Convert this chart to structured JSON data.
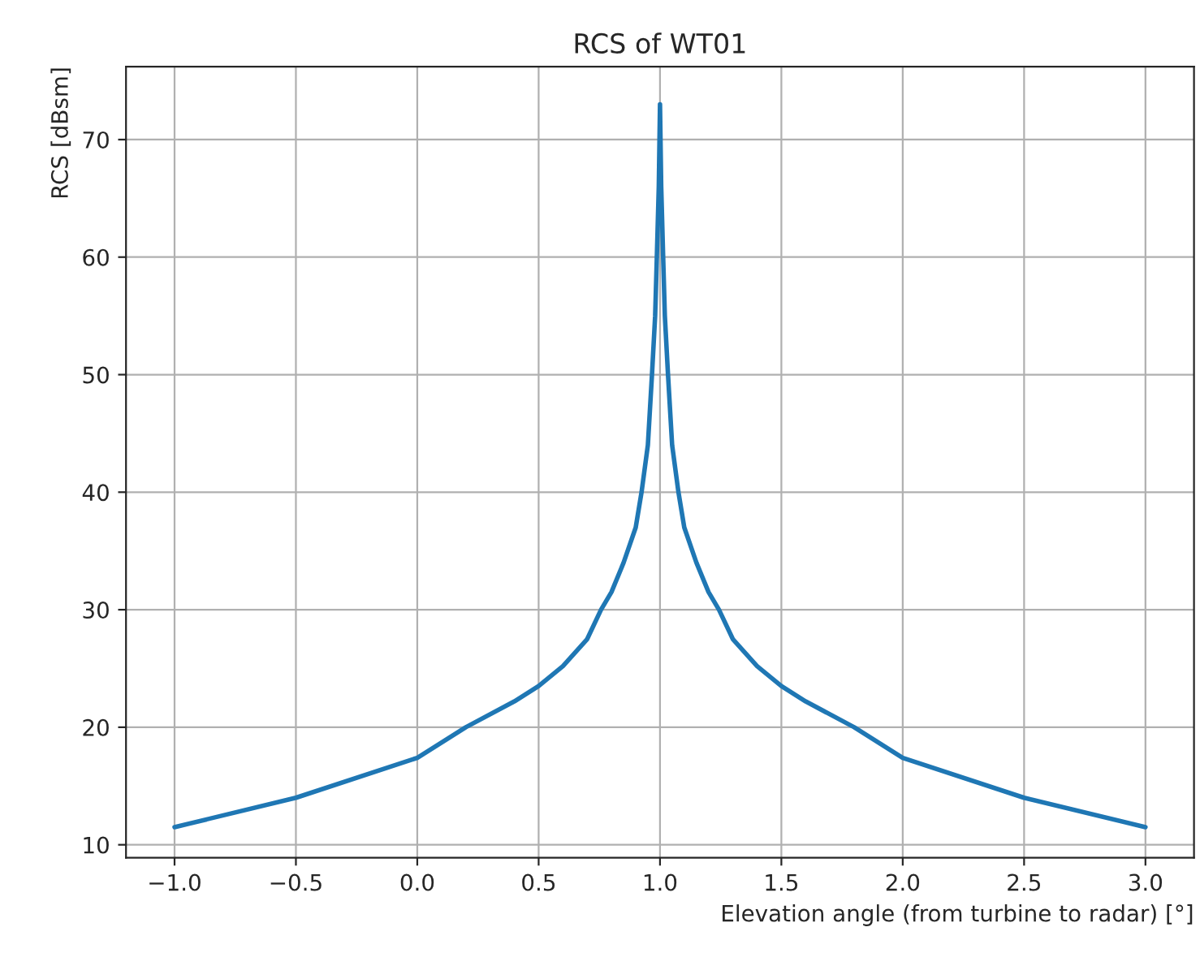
{
  "chart_data": {
    "type": "line",
    "title": "RCS of WT01",
    "xlabel": "Elevation angle (from turbine to radar) [°]",
    "ylabel": "RCS [dBsm]",
    "series": [
      {
        "color": "#1f77b4",
        "x": [
          -1.0,
          -0.5,
          0.0,
          0.2,
          0.4,
          0.5,
          0.6,
          0.7,
          0.757,
          0.8,
          0.85,
          0.9,
          0.924,
          0.95,
          0.967,
          0.98,
          0.987,
          0.995,
          1.0,
          1.005,
          1.013,
          1.02,
          1.033,
          1.05,
          1.076,
          1.1,
          1.15,
          1.2,
          1.243,
          1.3,
          1.4,
          1.5,
          1.6,
          1.8,
          2.0,
          2.5,
          3.0
        ],
        "values": [
          11.5,
          14.0,
          17.4,
          20.0,
          22.2,
          23.5,
          25.2,
          27.5,
          30,
          31.5,
          34,
          37,
          40,
          44,
          50,
          55,
          60,
          66,
          73,
          66,
          60,
          55,
          50,
          44,
          40,
          37,
          34,
          31.5,
          30,
          27.5,
          25.2,
          23.5,
          22.2,
          20.0,
          17.4,
          14.0,
          11.5
        ]
      }
    ],
    "xlim": [
      -1.2,
      3.2
    ],
    "ylim": [
      8.9,
      76.2
    ],
    "xticks": [
      {
        "value": -1.0,
        "label": "−1.0"
      },
      {
        "value": -0.5,
        "label": "−0.5"
      },
      {
        "value": 0.0,
        "label": "0.0"
      },
      {
        "value": 0.5,
        "label": "0.5"
      },
      {
        "value": 1.0,
        "label": "1.0"
      },
      {
        "value": 1.5,
        "label": "1.5"
      },
      {
        "value": 2.0,
        "label": "2.0"
      },
      {
        "value": 2.5,
        "label": "2.5"
      },
      {
        "value": 3.0,
        "label": "3.0"
      }
    ],
    "yticks": [
      10,
      20,
      30,
      40,
      50,
      60,
      70
    ],
    "grid": true,
    "legend": false
  }
}
